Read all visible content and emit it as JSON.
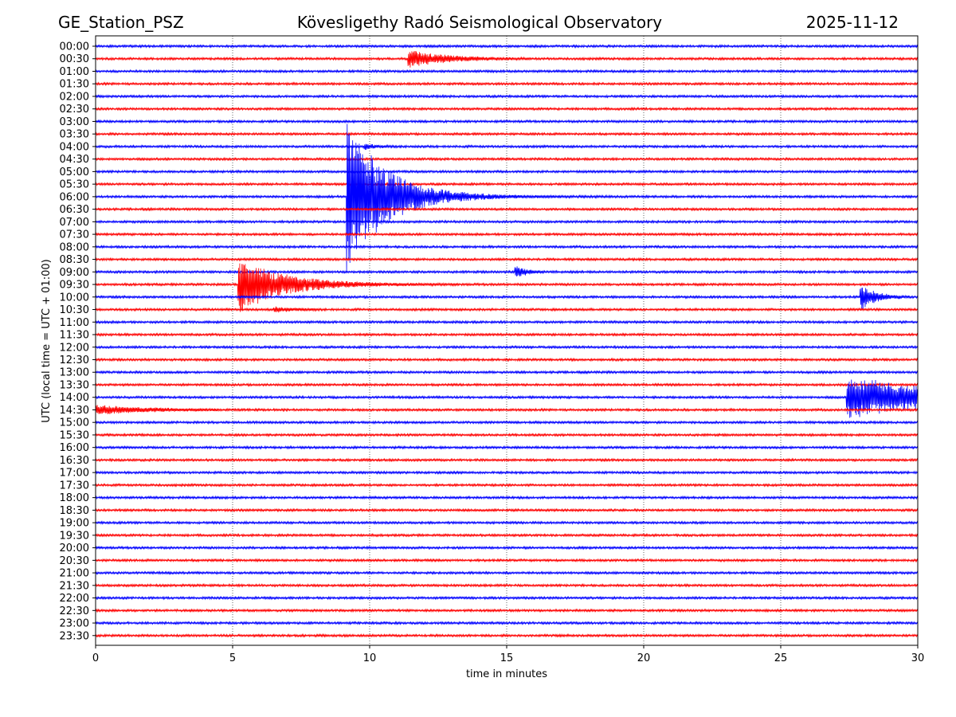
{
  "chart_data": {
    "type": "line",
    "title_left": "GE_Station_PSZ",
    "title_center": "Kövesligethy Radó Seismological Observatory",
    "title_right": "2025-11-12",
    "xlabel": "time in minutes",
    "ylabel": "UTC (local time = UTC + 01:00)",
    "xlim": [
      0,
      30
    ],
    "x_ticks": [
      0,
      5,
      10,
      15,
      20,
      25,
      30
    ],
    "x_tick_labels": [
      "0",
      "5",
      "10",
      "15",
      "20",
      "25",
      "30"
    ],
    "grid": "vertical dotted at x ticks",
    "trace_colors": [
      "#0000ff",
      "#ff0000"
    ],
    "rows": [
      "00:00",
      "00:30",
      "01:00",
      "01:30",
      "02:00",
      "02:30",
      "03:00",
      "03:30",
      "04:00",
      "04:30",
      "05:00",
      "05:30",
      "06:00",
      "06:30",
      "07:00",
      "07:30",
      "08:00",
      "08:30",
      "09:00",
      "09:30",
      "10:00",
      "10:30",
      "11:00",
      "11:30",
      "12:00",
      "12:30",
      "13:00",
      "13:30",
      "14:00",
      "14:30",
      "15:00",
      "15:30",
      "16:00",
      "16:30",
      "17:00",
      "17:30",
      "18:00",
      "18:30",
      "19:00",
      "19:30",
      "20:00",
      "20:30",
      "21:00",
      "21:30",
      "22:00",
      "22:30",
      "23:00",
      "23:30"
    ],
    "noise_amplitude_rows": 0.06,
    "events": [
      {
        "row": "00:30",
        "start_min": 11.4,
        "duration_min": 4.5,
        "peak_amp_rows": 0.7,
        "tail_decay_min": 1.3
      },
      {
        "row": "04:00",
        "start_min": 9.8,
        "duration_min": 1.2,
        "peak_amp_rows": 0.25,
        "tail_decay_min": 0.4
      },
      {
        "row": "06:00",
        "start_min": 9.15,
        "duration_min": 20.0,
        "peak_amp_rows": 6.3,
        "tail_decay_min": 1.4
      },
      {
        "row": "09:00",
        "start_min": 15.3,
        "duration_min": 1.0,
        "peak_amp_rows": 0.6,
        "tail_decay_min": 0.35
      },
      {
        "row": "09:30",
        "start_min": 5.2,
        "duration_min": 8.0,
        "peak_amp_rows": 2.3,
        "tail_decay_min": 1.6
      },
      {
        "row": "10:00",
        "start_min": 27.9,
        "duration_min": 1.8,
        "peak_amp_rows": 1.2,
        "tail_decay_min": 0.5
      },
      {
        "row": "10:30",
        "start_min": 6.5,
        "duration_min": 1.6,
        "peak_amp_rows": 0.2,
        "tail_decay_min": 0.7
      },
      {
        "row": "14:00",
        "start_min": 27.4,
        "duration_min": 2.6,
        "peak_amp_rows": 1.7,
        "tail_decay_min": 4.0
      },
      {
        "row": "14:30",
        "start_min": 0.0,
        "duration_min": 4.5,
        "peak_amp_rows": 0.35,
        "tail_decay_min": 1.8
      }
    ]
  }
}
